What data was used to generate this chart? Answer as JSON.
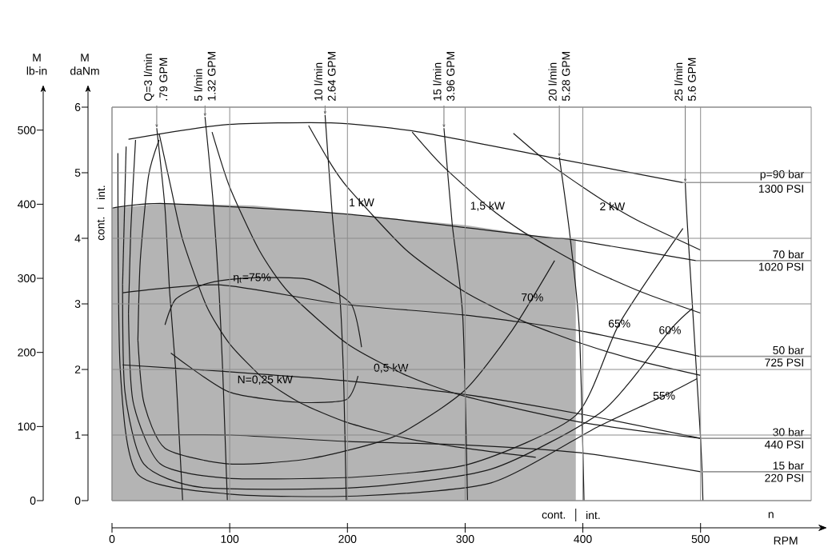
{
  "chart_data": {
    "type": "line",
    "xlabel": "RPM",
    "ylabel": "M daNm",
    "y2label": "M lb-in",
    "xlim": [
      0,
      594
    ],
    "ylim": [
      0,
      6
    ],
    "y2lim": [
      0,
      531
    ],
    "xticks": [
      0,
      100,
      200,
      300,
      400,
      500
    ],
    "yticks": [
      0,
      1,
      2,
      3,
      4,
      5,
      6
    ],
    "y2ticks": [
      0,
      100,
      200,
      300,
      400,
      500
    ],
    "grid": true,
    "series": [
      {
        "type": "area",
        "color": "#b4b4b4",
        "x": [
          0,
          45,
          120,
          199,
          300,
          367,
          394
        ],
        "values": [
          4.46,
          4.53,
          4.5,
          4.37,
          4.2,
          4.02,
          3.98
        ]
      },
      {
        "color": "#1a1a1a",
        "x": [
          14,
          95,
          186,
          258,
          371,
          485
        ],
        "values": [
          5.51,
          5.73,
          5.76,
          5.63,
          5.24,
          4.85
        ]
      },
      {
        "color": "#1a1a1a",
        "x": [
          0,
          45,
          199,
          367,
          391,
          496
        ],
        "values": [
          4.46,
          4.53,
          4.37,
          4.02,
          3.98,
          3.66
        ]
      },
      {
        "color": "#1a1a1a",
        "x": [
          9,
          91,
          194,
          299,
          397,
          499
        ],
        "values": [
          3.17,
          3.29,
          3.0,
          2.83,
          2.59,
          2.2
        ]
      },
      {
        "color": "#1a1a1a",
        "x": [
          9,
          95,
          197,
          299,
          398,
          500
        ],
        "values": [
          2.07,
          1.97,
          1.83,
          1.62,
          1.32,
          0.95
        ]
      },
      {
        "color": "#1a1a1a",
        "x": [
          18,
          101,
          202,
          299,
          398,
          500
        ],
        "values": [
          1.0,
          1.0,
          0.9,
          0.85,
          0.73,
          0.44
        ]
      },
      {
        "color": "#1a1a1a",
        "x": [
          38,
          45,
          49,
          54,
          57,
          60
        ],
        "values": [
          5.68,
          4.46,
          3.17,
          2.02,
          1.0,
          0
        ]
      },
      {
        "color": "#1a1a1a",
        "x": [
          79,
          86,
          91,
          94,
          96,
          98
        ],
        "values": [
          5.85,
          4.53,
          3.17,
          2.0,
          1.0,
          0
        ]
      },
      {
        "color": "#1a1a1a",
        "x": [
          181,
          187,
          194,
          197,
          199
        ],
        "values": [
          5.88,
          4.39,
          3.0,
          1.7,
          0
        ]
      },
      {
        "color": "#1a1a1a",
        "x": [
          282,
          289,
          298,
          302
        ],
        "values": [
          5.68,
          4.22,
          2.8,
          0
        ]
      },
      {
        "color": "#1a1a1a",
        "x": [
          380,
          389,
          397,
          401
        ],
        "values": [
          5.24,
          4.05,
          2.6,
          0
        ]
      },
      {
        "color": "#1a1a1a",
        "x": [
          487,
          489,
          500,
          502
        ],
        "values": [
          4.85,
          4.15,
          0.95,
          0
        ]
      },
      {
        "color": "#1a1a1a",
        "x": [
          40,
          50,
          60,
          80,
          100,
          130,
          160,
          200,
          250,
          300,
          360
        ],
        "values": [
          5.6,
          4.78,
          3.98,
          2.98,
          2.39,
          1.84,
          1.49,
          1.19,
          0.95,
          0.8,
          0.66
        ]
      },
      {
        "color": "#1a1a1a",
        "x": [
          85,
          100,
          125,
          150,
          200,
          250,
          300,
          400,
          500
        ],
        "values": [
          5.62,
          4.78,
          3.82,
          3.18,
          2.39,
          1.91,
          1.59,
          1.19,
          0.95
        ]
      },
      {
        "color": "#1a1a1a",
        "x": [
          167,
          185,
          200,
          250,
          300,
          350,
          400,
          450,
          500
        ],
        "values": [
          5.72,
          5.16,
          4.78,
          3.82,
          3.18,
          2.73,
          2.39,
          2.12,
          1.91
        ]
      },
      {
        "color": "#1a1a1a",
        "x": [
          255,
          280,
          319,
          350,
          400,
          450,
          500
        ],
        "values": [
          5.62,
          5.12,
          4.49,
          4.09,
          3.58,
          3.18,
          2.86
        ]
      },
      {
        "color": "#1a1a1a",
        "x": [
          341,
          370,
          400,
          425,
          450,
          500
        ],
        "values": [
          5.6,
          5.16,
          4.78,
          4.49,
          4.24,
          3.82
        ]
      },
      {
        "color": "#1a1a1a",
        "x": [
          45,
          54,
          77,
          99,
          130,
          168,
          203,
          212
        ],
        "values": [
          2.68,
          3.07,
          3.29,
          3.37,
          3.4,
          3.37,
          3.0,
          2.34
        ]
      },
      {
        "color": "#1a1a1a",
        "x": [
          50,
          99,
          158,
          199,
          209
        ],
        "values": [
          2.25,
          1.66,
          1.5,
          1.54,
          1.9
        ]
      },
      {
        "color": "#1a1a1a",
        "x": [
          22,
          24,
          31,
          40
        ],
        "values": [
          2.45,
          3.66,
          4.95,
          5.5
        ]
      },
      {
        "color": "#1a1a1a",
        "x": [
          22,
          27,
          45,
          99,
          168,
          240,
          299,
          340,
          376
        ],
        "values": [
          2.45,
          1.5,
          0.8,
          0.56,
          0.64,
          0.98,
          1.67,
          2.6,
          3.66
        ]
      },
      {
        "color": "#1a1a1a",
        "x": [
          14,
          16,
          20
        ],
        "values": [
          2.85,
          4.15,
          5.5
        ]
      },
      {
        "color": "#1a1a1a",
        "x": [
          14,
          18,
          41,
          99,
          208,
          304,
          394,
          431,
          485
        ],
        "values": [
          2.85,
          1.5,
          0.56,
          0.34,
          0.36,
          0.56,
          1.3,
          2.7,
          4.15
        ]
      },
      {
        "color": "#1a1a1a",
        "x": [
          9,
          12
        ],
        "values": [
          3.3,
          5.4
        ]
      },
      {
        "color": "#1a1a1a",
        "x": [
          9,
          11,
          27,
          77,
          208,
          322,
          417,
          474,
          493
        ],
        "values": [
          3.3,
          1.66,
          0.56,
          0.2,
          0.2,
          0.48,
          1.37,
          2.6,
          2.93
        ]
      },
      {
        "color": "#1a1a1a",
        "x": [
          5,
          7,
          22,
          100,
          208,
          322,
          412,
          469,
          497
        ],
        "values": [
          5.3,
          2.0,
          0.4,
          0.1,
          0.07,
          0.27,
          1.12,
          1.6,
          1.86
        ]
      }
    ],
    "annotations": [
      {
        "text": "Q=3 l/min",
        "x": 38,
        "y": 5.68
      },
      {
        "text": ".79 GPM",
        "x": 38,
        "y": 5.68
      },
      {
        "text": "5 l/min",
        "x": 79,
        "y": 5.85
      },
      {
        "text": "1.32 GPM",
        "x": 79,
        "y": 5.85
      },
      {
        "text": "10 l/min",
        "x": 181,
        "y": 5.88
      },
      {
        "text": "2.64 GPM",
        "x": 181,
        "y": 5.88
      },
      {
        "text": "15 l/min",
        "x": 282,
        "y": 5.68
      },
      {
        "text": "3.96 GPM",
        "x": 282,
        "y": 5.68
      },
      {
        "text": "20 l/min",
        "x": 380,
        "y": 5.24
      },
      {
        "text": "5.28 GPM",
        "x": 380,
        "y": 5.24
      },
      {
        "text": "25 l/min",
        "x": 487,
        "y": 4.85
      },
      {
        "text": "5.6 GPM",
        "x": 487,
        "y": 4.85
      },
      {
        "text": "p=90 bar",
        "x": 485,
        "y": 4.85
      },
      {
        "text": "1300 PSI",
        "x": 485,
        "y": 4.85
      },
      {
        "text": "70 bar",
        "x": 496,
        "y": 3.66
      },
      {
        "text": "1020 PSI",
        "x": 496,
        "y": 3.66
      },
      {
        "text": "50 bar",
        "x": 499,
        "y": 2.2
      },
      {
        "text": "725 PSI",
        "x": 499,
        "y": 2.2
      },
      {
        "text": "30 bar",
        "x": 500,
        "y": 0.95
      },
      {
        "text": "440 PSI",
        "x": 500,
        "y": 0.95
      },
      {
        "text": "15 bar",
        "x": 500,
        "y": 0.44
      },
      {
        "text": "220 PSI",
        "x": 500,
        "y": 0.44
      },
      {
        "text": "N=0,25 kW",
        "x": 130,
        "y": 1.84
      },
      {
        "text": "0,5 kW",
        "x": 237,
        "y": 2.02
      },
      {
        "text": "1 kW",
        "x": 212,
        "y": 4.55
      },
      {
        "text": "1,5 kW",
        "x": 319,
        "y": 4.49
      },
      {
        "text": "2 kW",
        "x": 425,
        "y": 4.49
      },
      {
        "text": "η$_{t}$=75%",
        "x": 119,
        "y": 3.39
      },
      {
        "text": "70%",
        "x": 357,
        "y": 3.1
      },
      {
        "text": "65%",
        "x": 431,
        "y": 2.7
      },
      {
        "text": "60%",
        "x": 474,
        "y": 2.6
      },
      {
        "text": "55%",
        "x": 469,
        "y": 1.6
      },
      "int.",
      "cont.",
      "cont.",
      "int.",
      "n"
    ]
  }
}
